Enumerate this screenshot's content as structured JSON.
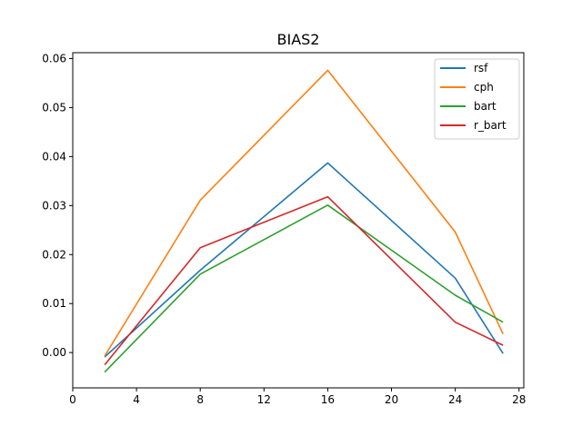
{
  "chart_data": {
    "type": "line",
    "title": "BIAS2",
    "xlabel": "",
    "ylabel": "",
    "xlim": [
      0,
      28.3
    ],
    "ylim": [
      -0.0072,
      0.0612
    ],
    "xticks": [
      0,
      4,
      8,
      12,
      16,
      20,
      24,
      28
    ],
    "xtick_labels": [
      "0",
      "4",
      "8",
      "12",
      "16",
      "20",
      "24",
      "28"
    ],
    "yticks": [
      0.0,
      0.01,
      0.02,
      0.03,
      0.04,
      0.05,
      0.06
    ],
    "ytick_labels": [
      "0.00",
      "0.01",
      "0.02",
      "0.03",
      "0.04",
      "0.05",
      "0.06"
    ],
    "grid": false,
    "legend_position": "top-right",
    "x": [
      2,
      8,
      16,
      24,
      27
    ],
    "series": [
      {
        "name": "rsf",
        "color": "#1f77b4",
        "values": [
          -0.0009,
          0.0168,
          0.0387,
          0.0152,
          -0.0002
        ]
      },
      {
        "name": "cph",
        "color": "#ff7f0e",
        "values": [
          -0.0007,
          0.0311,
          0.0576,
          0.0246,
          0.0038
        ]
      },
      {
        "name": "bart",
        "color": "#2ca02c",
        "values": [
          -0.004,
          0.016,
          0.0301,
          0.0117,
          0.0062
        ]
      },
      {
        "name": "r_bart",
        "color": "#d62728",
        "values": [
          -0.0025,
          0.0214,
          0.0318,
          0.0062,
          0.0015
        ]
      }
    ]
  }
}
